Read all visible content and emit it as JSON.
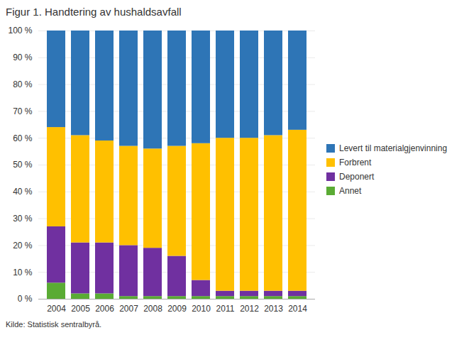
{
  "chart_data": {
    "type": "bar",
    "stacked": true,
    "title": "Figur 1. Handtering av hushaldsavfall",
    "source": "Kilde: Statistisk sentralbyrå.",
    "categories": [
      "2004",
      "2005",
      "2006",
      "2007",
      "2008",
      "2009",
      "2010",
      "2011",
      "2012",
      "2013",
      "2014"
    ],
    "series": [
      {
        "name": "Annet",
        "color": "#5aab34",
        "values": [
          6,
          2,
          2,
          1,
          1,
          1,
          1,
          1,
          1,
          1,
          1
        ]
      },
      {
        "name": "Deponert",
        "color": "#7030a0",
        "values": [
          21,
          19,
          19,
          19,
          18,
          15,
          6,
          2,
          2,
          2,
          2
        ]
      },
      {
        "name": "Forbrent",
        "color": "#ffc000",
        "values": [
          37,
          40,
          38,
          37,
          37,
          41,
          51,
          57,
          57,
          58,
          60
        ]
      },
      {
        "name": "Levert til materialgjenvinning",
        "color": "#2e75b6",
        "values": [
          36,
          39,
          41,
          43,
          44,
          43,
          42,
          40,
          40,
          39,
          37
        ]
      }
    ],
    "ylim": [
      0,
      100
    ],
    "yticks": [
      {
        "value": 0,
        "label": "0 %"
      },
      {
        "value": 10,
        "label": "10 %"
      },
      {
        "value": 20,
        "label": "20 %"
      },
      {
        "value": 30,
        "label": "30 %"
      },
      {
        "value": 40,
        "label": "40 %"
      },
      {
        "value": 50,
        "label": "50 %"
      },
      {
        "value": 60,
        "label": "60 %"
      },
      {
        "value": 70,
        "label": "70 %"
      },
      {
        "value": 80,
        "label": "80 %"
      },
      {
        "value": 90,
        "label": "90 %"
      },
      {
        "value": 100,
        "label": "100 %"
      }
    ],
    "grid": true,
    "legend": "right"
  }
}
